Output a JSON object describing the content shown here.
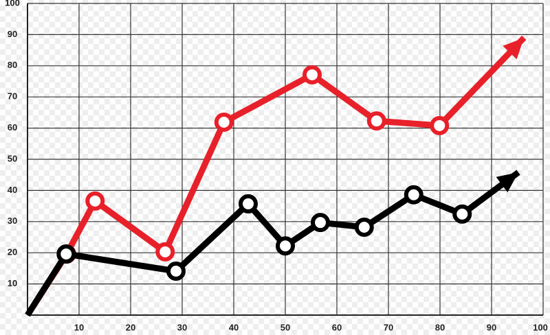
{
  "chart_data": {
    "type": "line",
    "xlim": [
      0,
      100
    ],
    "ylim": [
      0,
      100
    ],
    "xticks": [
      10,
      20,
      30,
      40,
      50,
      60,
      70,
      80,
      90,
      100
    ],
    "yticks": [
      10,
      20,
      30,
      40,
      50,
      60,
      70,
      80,
      90,
      100
    ],
    "grid": true,
    "series": [
      {
        "color": "#e8202a",
        "x": [
          0,
          7.6,
          13.1,
          26.7,
          38.1,
          55.2,
          67.7,
          79.9,
          96.3
        ],
        "values": [
          0,
          19.6,
          36.6,
          20.3,
          61.9,
          77.1,
          62.3,
          60.8,
          89
        ]
      },
      {
        "color": "#000000",
        "x": [
          0,
          7.5,
          28.8,
          42.8,
          50,
          56.8,
          65.3,
          74.9,
          84.3,
          95.2
        ],
        "values": [
          0,
          19.6,
          14.1,
          35.7,
          22.2,
          29.7,
          28.2,
          38.6,
          32.4,
          45.8
        ]
      }
    ]
  }
}
